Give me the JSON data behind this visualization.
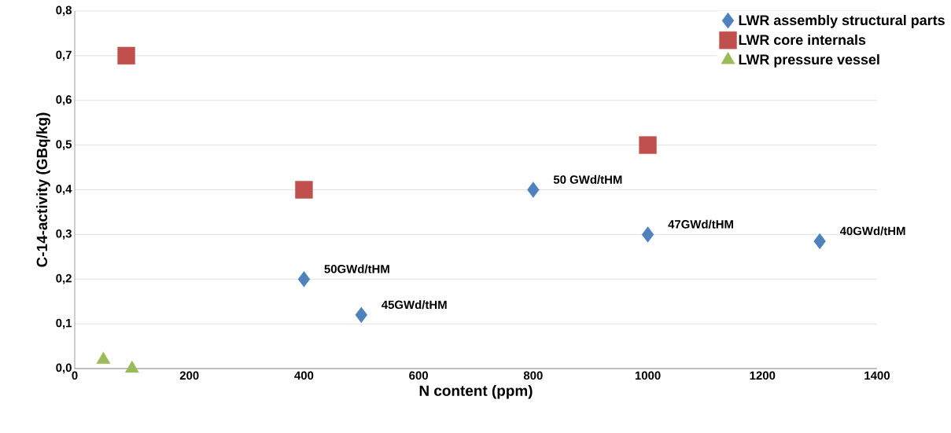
{
  "chart_data": {
    "type": "scatter",
    "xlabel": "N content (ppm)",
    "ylabel": "C-14-activity (GBq/kg)",
    "xlim": [
      0,
      1400
    ],
    "ylim": [
      0,
      0.8
    ],
    "xticks": [
      0,
      200,
      400,
      600,
      800,
      1000,
      1200,
      1400
    ],
    "yticks": [
      {
        "value": 0,
        "label": "0,0"
      },
      {
        "value": 0.1,
        "label": "0,1"
      },
      {
        "value": 0.2,
        "label": "0,2"
      },
      {
        "value": 0.3,
        "label": "0,3"
      },
      {
        "value": 0.4,
        "label": "0,4"
      },
      {
        "value": 0.5,
        "label": "0,5"
      },
      {
        "value": 0.6,
        "label": "0,6"
      },
      {
        "value": 0.7,
        "label": "0,7"
      },
      {
        "value": 0.8,
        "label": "0,8"
      }
    ],
    "grid": "y",
    "legend": "top right",
    "series": [
      {
        "name": "LWR assembly structural parts",
        "color": "#4f81bd",
        "marker": "diamond",
        "x": [
          400,
          500,
          800,
          1000,
          1300
        ],
        "values": [
          0.2,
          0.12,
          0.4,
          0.3,
          0.285
        ]
      },
      {
        "name": "LWR core internals",
        "color": "#c0504d",
        "marker": "square",
        "x": [
          90,
          400,
          1000
        ],
        "values": [
          0.7,
          0.4,
          0.5
        ]
      },
      {
        "name": "LWR pressure vessel",
        "color": "#9bbb59",
        "marker": "triangle",
        "x": [
          50,
          100
        ],
        "values": [
          0.02,
          0.0
        ]
      }
    ],
    "annotations": [
      {
        "text": "50 GWd/tHM",
        "x": 800,
        "y": 0.4
      },
      {
        "text": "47GWd/tHM",
        "x": 1000,
        "y": 0.3
      },
      {
        "text": "40GWd/tHM",
        "x": 1300,
        "y": 0.285
      },
      {
        "text": "50GWd/tHM",
        "x": 400,
        "y": 0.2
      },
      {
        "text": "45GWd/tHM",
        "x": 500,
        "y": 0.12
      }
    ]
  }
}
